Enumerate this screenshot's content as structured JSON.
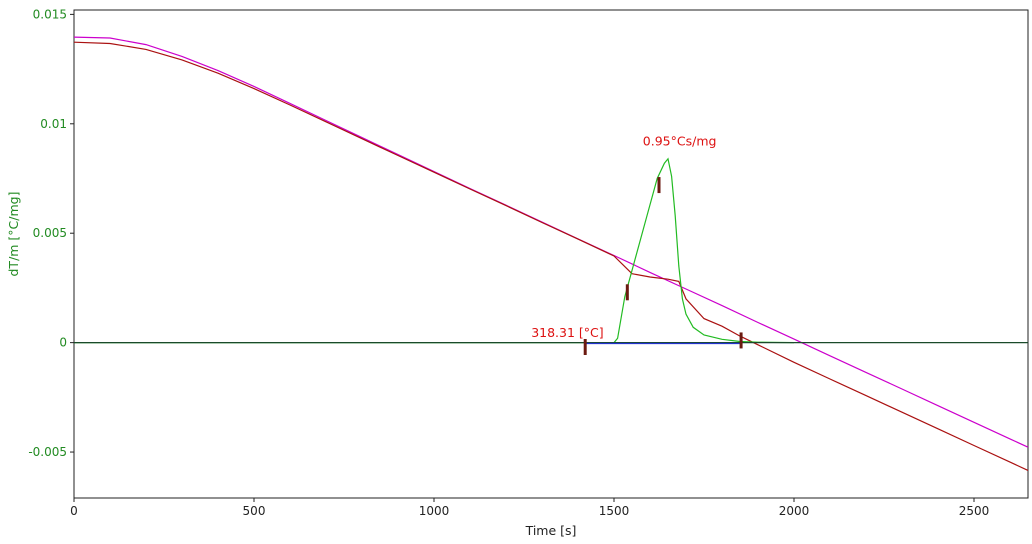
{
  "chart_data": {
    "type": "line",
    "title": "",
    "xlabel": "Time [s]",
    "ylabel": "dT/m  [°C/mg]",
    "xlim": [
      0,
      2650
    ],
    "ylim": [
      -0.0071,
      0.0152
    ],
    "x_ticks": [
      0,
      500,
      1000,
      1500,
      2000,
      2500
    ],
    "x_tick_labels": [
      "0",
      "500",
      "1000",
      "1500",
      "2000",
      "2500"
    ],
    "y_ticks": [
      0.015,
      0.01,
      0.005,
      0,
      -0.005
    ],
    "y_tick_labels": [
      "0.015",
      "0.01",
      "0.005",
      "0",
      "-0.005"
    ],
    "grid": false,
    "legend": "none",
    "colors": {
      "axis_text": "#228B22",
      "axis_black": "#222222",
      "annotation": "#dd1111",
      "marker": "#6b1a10"
    },
    "series": [
      {
        "color": "#cc00cc",
        "x": [
          0,
          100,
          200,
          300,
          400,
          500,
          600,
          700,
          800,
          900,
          1000,
          1100,
          1200,
          1300,
          1400,
          1500,
          1600,
          1700,
          1800,
          1900,
          2000,
          2100,
          2200,
          2300,
          2400,
          2500,
          2600,
          2650
        ],
        "y": [
          0.01396,
          0.01392,
          0.01362,
          0.01308,
          0.01243,
          0.01171,
          0.01093,
          0.01015,
          0.00937,
          0.00859,
          0.00782,
          0.00704,
          0.00628,
          0.00551,
          0.00474,
          0.00398,
          0.00321,
          0.00245,
          0.00169,
          0.00092,
          0.00016,
          -0.0006,
          -0.00136,
          -0.00212,
          -0.00288,
          -0.00364,
          -0.0044,
          -0.00478
        ]
      },
      {
        "color": "#aa1111",
        "x": [
          0,
          100,
          200,
          300,
          400,
          500,
          600,
          700,
          800,
          900,
          1000,
          1100,
          1200,
          1300,
          1400,
          1500,
          1550,
          1600,
          1650,
          1680,
          1700,
          1750,
          1800,
          1850,
          1900,
          2000,
          2100,
          2200,
          2300,
          2400,
          2500,
          2600,
          2650
        ],
        "y": [
          0.01373,
          0.01367,
          0.0134,
          0.01292,
          0.01231,
          0.01161,
          0.01086,
          0.01009,
          0.00932,
          0.00855,
          0.00779,
          0.00702,
          0.00626,
          0.00549,
          0.00473,
          0.00396,
          0.00315,
          0.003,
          0.0029,
          0.0028,
          0.002,
          0.0011,
          0.00075,
          0.0003,
          -0.0001,
          -0.0009,
          -0.00166,
          -0.00242,
          -0.00318,
          -0.00394,
          -0.0047,
          -0.00546,
          -0.00584
        ]
      },
      {
        "color": "#22bb22",
        "x": [
          0,
          1500,
          1510,
          1530,
          1560,
          1590,
          1620,
          1640,
          1650,
          1660,
          1670,
          1680,
          1690,
          1700,
          1720,
          1750,
          1800,
          1850,
          1900,
          2000
        ],
        "y": [
          0,
          0,
          0.0002,
          0.0021,
          0.0039,
          0.0057,
          0.0075,
          0.0082,
          0.0084,
          0.0076,
          0.0058,
          0.0035,
          0.002,
          0.0013,
          0.0007,
          0.00035,
          0.00015,
          5e-05,
          2e-05,
          0
        ]
      },
      {
        "color": "#1a4a2a",
        "x": [
          0,
          2650
        ],
        "y": [
          0,
          0
        ]
      },
      {
        "color": "#2233cc",
        "x": [
          1420,
          1850
        ],
        "y": [
          -4e-05,
          -4e-05
        ]
      }
    ],
    "markers": [
      {
        "x": 1420,
        "y": -0.0002
      },
      {
        "x": 1537,
        "y": 0.0023
      },
      {
        "x": 1625,
        "y": 0.0072
      },
      {
        "x": 1853,
        "y": 0.0001
      }
    ],
    "annotations": [
      {
        "text": "318.31 [°C]",
        "x": 1270,
        "y": 0.00025
      },
      {
        "text": "0.95°Cs/mg",
        "x": 1580,
        "y": 0.009
      }
    ]
  }
}
